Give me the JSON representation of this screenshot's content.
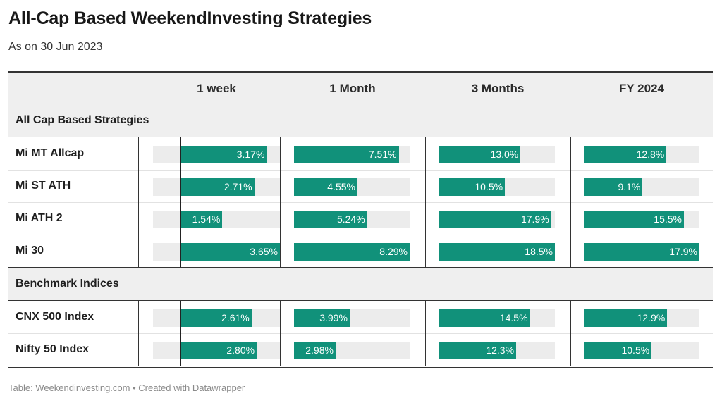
{
  "title": "All-Cap Based WeekendInvesting Strategies",
  "subtitle": "As on 30 Jun 2023",
  "footer": "Table: Weekendinvesting.com • Created with Datawrapper",
  "colors": {
    "bar": "#11917a",
    "track": "#ececec",
    "header_bg": "#efefef"
  },
  "chart_data": {
    "type": "table",
    "columns": [
      "",
      "1 week",
      "1 Month",
      "3 Months",
      "FY 2024"
    ],
    "domains": {
      "1 week": [
        -1.0,
        3.65
      ],
      "1 Month": [
        0,
        8.29
      ],
      "3 Months": [
        0,
        18.5
      ],
      "FY 2024": [
        0,
        17.9
      ]
    },
    "groups": [
      {
        "name": "All Cap Based Strategies",
        "rows": [
          {
            "name": "Mi MT Allcap",
            "values": [
              3.17,
              7.51,
              13.0,
              12.8
            ],
            "labels": [
              "3.17%",
              "7.51%",
              "13.0%",
              "12.8%"
            ]
          },
          {
            "name": "Mi ST ATH",
            "values": [
              2.71,
              4.55,
              10.5,
              9.1
            ],
            "labels": [
              "2.71%",
              "4.55%",
              "10.5%",
              "9.1%"
            ]
          },
          {
            "name": "Mi ATH 2",
            "values": [
              1.54,
              5.24,
              17.9,
              15.5
            ],
            "labels": [
              "1.54%",
              "5.24%",
              "17.9%",
              "15.5%"
            ]
          },
          {
            "name": "Mi 30",
            "values": [
              3.65,
              8.29,
              18.5,
              17.9
            ],
            "labels": [
              "3.65%",
              "8.29%",
              "18.5%",
              "17.9%"
            ]
          }
        ]
      },
      {
        "name": "Benchmark Indices",
        "rows": [
          {
            "name": "CNX 500 Index",
            "values": [
              2.61,
              3.99,
              14.5,
              12.9
            ],
            "labels": [
              "2.61%",
              "3.99%",
              "14.5%",
              "12.9%"
            ]
          },
          {
            "name": "Nifty 50 Index",
            "values": [
              2.8,
              2.98,
              12.3,
              10.5
            ],
            "labels": [
              "2.80%",
              "2.98%",
              "12.3%",
              "10.5%"
            ]
          }
        ]
      }
    ]
  }
}
